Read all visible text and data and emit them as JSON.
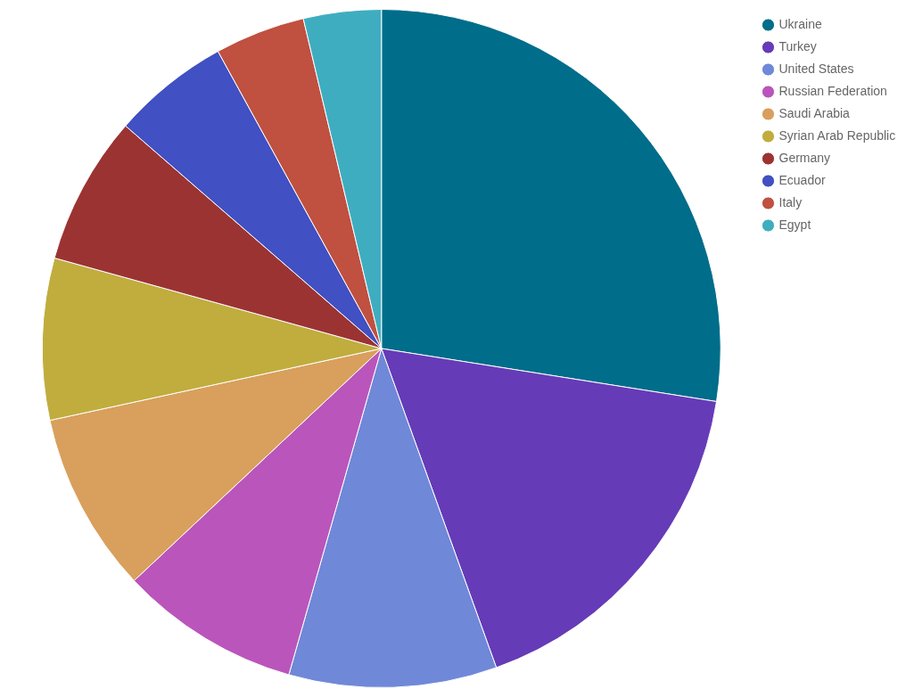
{
  "chart_data": {
    "type": "pie",
    "categories": [
      "Ukraine",
      "Turkey",
      "United States",
      "Russian Federation",
      "Saudi Arabia",
      "Syrian Arab Republic",
      "Germany",
      "Ecuador",
      "Italy",
      "Egypt"
    ],
    "values": [
      27.5,
      17.0,
      9.9,
      8.6,
      8.6,
      7.7,
      7.1,
      5.6,
      4.3,
      3.7
    ],
    "colors": [
      "#006d8a",
      "#663bb8",
      "#6f88d8",
      "#ba55bc",
      "#d99f5c",
      "#c0ad3e",
      "#9c3333",
      "#4150c2",
      "#c05040",
      "#3fadc0"
    ],
    "legend": "top right"
  }
}
